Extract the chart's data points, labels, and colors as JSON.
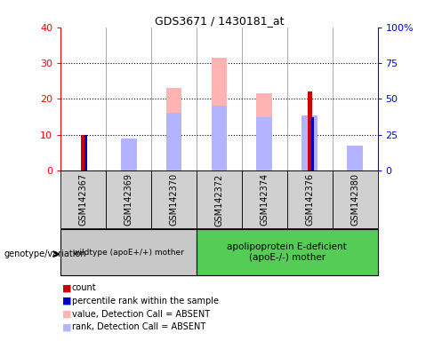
{
  "title": "GDS3671 / 1430181_at",
  "samples": [
    "GSM142367",
    "GSM142369",
    "GSM142370",
    "GSM142372",
    "GSM142374",
    "GSM142376",
    "GSM142380"
  ],
  "count_values": [
    10,
    0,
    0,
    0,
    0,
    22,
    0
  ],
  "percentile_rank_values": [
    10,
    0,
    0,
    0,
    0,
    15,
    0
  ],
  "absent_value_values": [
    0,
    8.5,
    23,
    31.5,
    21.5,
    15,
    4.5
  ],
  "absent_rank_values": [
    0,
    9,
    16,
    18,
    15,
    15.5,
    7
  ],
  "ylim_left": [
    0,
    40
  ],
  "ylim_right": [
    0,
    100
  ],
  "yticks_left": [
    0,
    10,
    20,
    30,
    40
  ],
  "yticks_right": [
    0,
    25,
    50,
    75,
    100
  ],
  "ytick_labels_right": [
    "0",
    "25",
    "50",
    "75",
    "100%"
  ],
  "group1_label": "wildtype (apoE+/+) mother",
  "group2_label": "apolipoprotein E-deficient\n(apoE-/-) mother",
  "genotype_label": "genotype/variation",
  "color_count": "#cc0000",
  "color_rank": "#0000cc",
  "color_absent_value": "#ffb3b3",
  "color_absent_rank": "#b3b3ff",
  "color_group1_bg": "#c8c8c8",
  "color_group2_bg": "#55cc55",
  "color_xtick_bg": "#d0d0d0",
  "legend_items": [
    {
      "label": "count",
      "color": "#cc0000"
    },
    {
      "label": "percentile rank within the sample",
      "color": "#0000cc"
    },
    {
      "label": "value, Detection Call = ABSENT",
      "color": "#ffb3b3"
    },
    {
      "label": "rank, Detection Call = ABSENT",
      "color": "#b3b3ff"
    }
  ]
}
